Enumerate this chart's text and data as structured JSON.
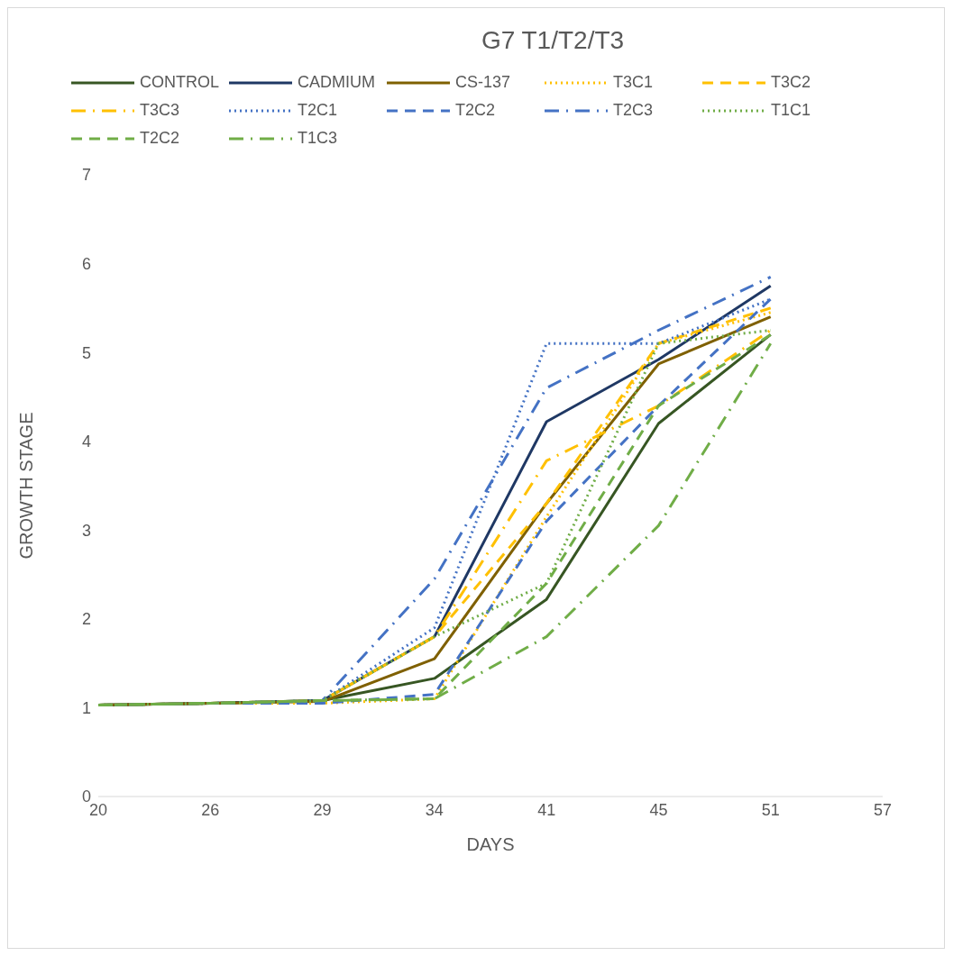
{
  "chart_data": {
    "type": "line",
    "title": "G7 T1/T2/T3",
    "xlabel": "DAYS",
    "ylabel": "GROWTH STAGE",
    "categories": [
      "20",
      "26",
      "29",
      "34",
      "41",
      "45",
      "51",
      "57"
    ],
    "ylim": [
      0,
      7
    ],
    "yticks": [
      0,
      1,
      2,
      3,
      4,
      5,
      6,
      7
    ],
    "grid": false,
    "legend": "top",
    "marker": "none",
    "series": [
      {
        "name": "CONTROL",
        "color": "#375623",
        "line_style": "solid",
        "values": [
          1.03,
          1.05,
          1.08,
          1.33,
          2.22,
          4.2,
          5.2,
          null
        ]
      },
      {
        "name": "CADMIUM",
        "color": "#1f3864",
        "line_style": "solid",
        "values": [
          1.03,
          1.05,
          1.08,
          1.8,
          4.22,
          4.92,
          5.75,
          null
        ]
      },
      {
        "name": "CS-137",
        "color": "#7f6000",
        "line_style": "solid",
        "values": [
          1.03,
          1.05,
          1.07,
          1.55,
          3.3,
          4.87,
          5.4,
          null
        ]
      },
      {
        "name": "T3C1",
        "color": "#ffc000",
        "line_style": "dotted",
        "values": [
          1.03,
          1.05,
          1.05,
          1.1,
          3.15,
          5.1,
          5.45,
          null
        ]
      },
      {
        "name": "T3C2",
        "color": "#ffc000",
        "line_style": "dashed",
        "values": [
          1.03,
          1.05,
          1.08,
          1.8,
          3.3,
          5.1,
          5.5,
          null
        ]
      },
      {
        "name": "T3C3",
        "color": "#ffc000",
        "line_style": "dashdot",
        "values": [
          1.03,
          1.05,
          1.08,
          1.8,
          3.78,
          4.4,
          5.25,
          null
        ]
      },
      {
        "name": "T2C1",
        "color": "#4472c4",
        "line_style": "dotted",
        "values": [
          1.03,
          1.05,
          1.08,
          1.9,
          5.1,
          5.1,
          5.6,
          null
        ]
      },
      {
        "name": "T2C2",
        "color": "#4472c4",
        "line_style": "dashed",
        "values": [
          1.03,
          1.05,
          1.05,
          1.15,
          3.1,
          4.4,
          5.6,
          null
        ]
      },
      {
        "name": "T2C3",
        "color": "#4472c4",
        "line_style": "dashdot",
        "values": [
          1.03,
          1.05,
          1.08,
          2.45,
          4.6,
          5.25,
          5.85,
          null
        ]
      },
      {
        "name": "T1C1",
        "color": "#70ad47",
        "line_style": "dotted",
        "values": [
          1.03,
          1.05,
          1.08,
          1.8,
          2.4,
          5.1,
          5.25,
          null
        ]
      },
      {
        "name": "T2C2",
        "color": "#70ad47",
        "line_style": "dashed",
        "values": [
          1.03,
          1.05,
          1.08,
          1.1,
          2.4,
          4.4,
          5.2,
          null
        ]
      },
      {
        "name": "T1C3",
        "color": "#70ad47",
        "line_style": "dashdot",
        "values": [
          1.03,
          1.05,
          1.08,
          1.1,
          1.8,
          3.05,
          5.1,
          null
        ]
      }
    ]
  }
}
